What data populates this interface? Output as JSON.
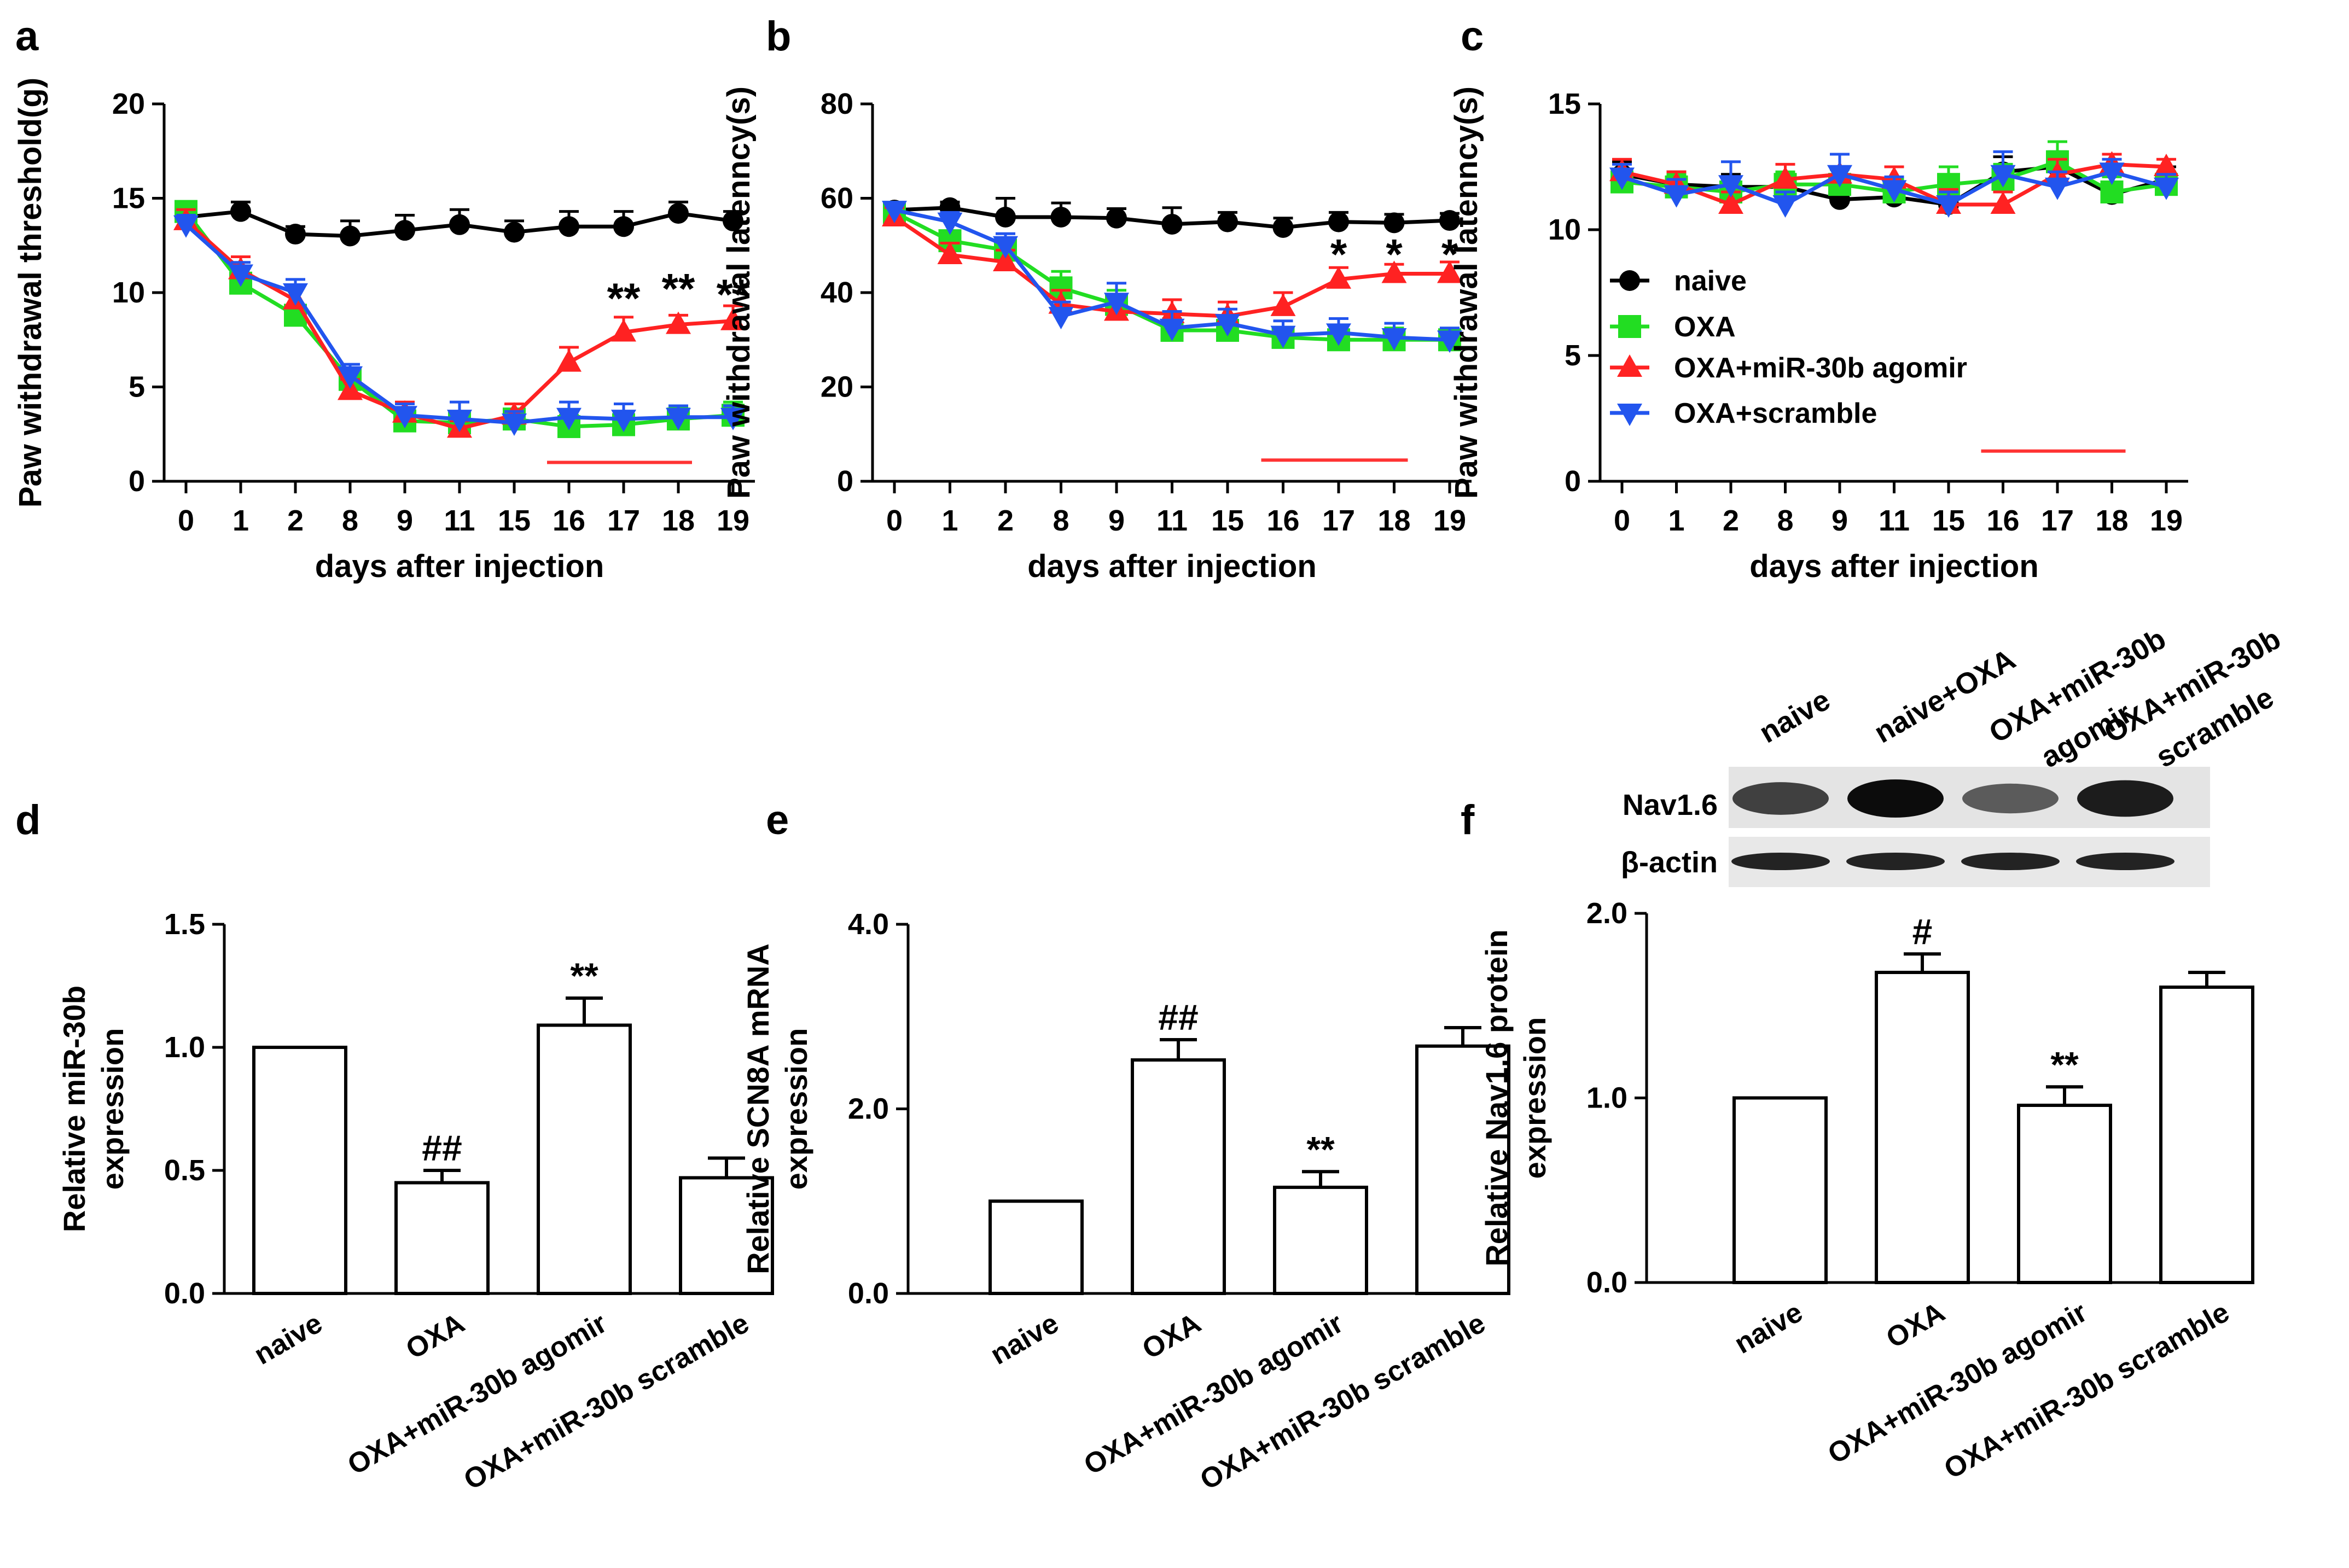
{
  "chart_data": [
    {
      "type": "line",
      "panel": "a",
      "ylabel": "Paw withdrawal threshold(g)",
      "xlabel": "days after injection",
      "categories": [
        "0",
        "1",
        "2",
        "8",
        "9",
        "11",
        "15",
        "16",
        "17",
        "18",
        "19"
      ],
      "ylim": [
        0,
        20
      ],
      "yticks": [
        0,
        5,
        10,
        15,
        20
      ],
      "series": [
        {
          "name": "naive",
          "color": "#000000",
          "marker": "circle",
          "values": [
            14.0,
            14.3,
            13.1,
            13.0,
            13.3,
            13.6,
            13.2,
            13.5,
            13.5,
            14.2,
            13.8
          ],
          "errors": [
            0.5,
            0.5,
            0.4,
            0.8,
            0.8,
            0.8,
            0.6,
            0.8,
            0.8,
            0.6,
            0.5
          ]
        },
        {
          "name": "OXA",
          "color": "#22dd22",
          "marker": "square",
          "values": [
            14.3,
            10.5,
            8.8,
            5.4,
            3.2,
            3.1,
            3.3,
            2.9,
            3.0,
            3.3,
            3.5
          ],
          "errors": [
            0.4,
            0.5,
            0.5,
            0.5,
            0.5,
            0.5,
            0.5,
            0.6,
            0.6,
            0.6,
            0.7
          ]
        },
        {
          "name": "OXA+miR-30b agomir",
          "color": "#ff2222",
          "marker": "triangle-up",
          "values": [
            13.8,
            11.2,
            9.6,
            4.8,
            3.6,
            2.8,
            3.5,
            6.3,
            7.9,
            8.3,
            8.5
          ],
          "errors": [
            0.6,
            0.7,
            0.7,
            0.6,
            0.6,
            0.4,
            0.6,
            0.8,
            0.8,
            0.5,
            0.8
          ]
        },
        {
          "name": "OXA+scramble",
          "color": "#2255ee",
          "marker": "triangle-down",
          "values": [
            13.6,
            11.0,
            10.0,
            5.6,
            3.5,
            3.3,
            3.1,
            3.4,
            3.3,
            3.4,
            3.4
          ],
          "errors": [
            0.5,
            0.6,
            0.7,
            0.6,
            0.6,
            0.9,
            0.6,
            0.8,
            0.8,
            0.6,
            0.6
          ]
        }
      ],
      "annotations": [
        {
          "category": "17",
          "y": 9.8,
          "text": "**"
        },
        {
          "category": "18",
          "y": 10.3,
          "text": "**"
        },
        {
          "category": "19",
          "y": 10.0,
          "text": "**"
        }
      ],
      "bar_range": {
        "from": "16",
        "to": "18",
        "y": 1.0,
        "color": "#ff3333"
      }
    },
    {
      "type": "line",
      "panel": "b",
      "ylabel": "Paw withdrawal latenncy(s)",
      "xlabel": "days after injection",
      "categories": [
        "0",
        "1",
        "2",
        "8",
        "9",
        "11",
        "15",
        "16",
        "17",
        "18",
        "19"
      ],
      "ylim": [
        0,
        80
      ],
      "yticks": [
        0,
        20,
        40,
        60,
        80
      ],
      "series": [
        {
          "name": "naive",
          "color": "#000000",
          "marker": "circle",
          "values": [
            57.5,
            58.0,
            56.0,
            56.0,
            55.8,
            54.5,
            55.0,
            53.8,
            55.0,
            54.8,
            55.3
          ],
          "errors": [
            1.2,
            1.2,
            4.0,
            3.0,
            2.0,
            3.5,
            2.0,
            2.0,
            2.0,
            1.8,
            1.5
          ]
        },
        {
          "name": "OXA",
          "color": "#22dd22",
          "marker": "square",
          "values": [
            57.0,
            51.0,
            49.0,
            41.0,
            37.5,
            32.0,
            32.0,
            30.5,
            30.0,
            30.0,
            30.0
          ],
          "errors": [
            1.5,
            2.0,
            2.0,
            3.5,
            3.0,
            2.5,
            2.0,
            2.0,
            2.0,
            2.5,
            2.0
          ]
        },
        {
          "name": "OXA+miR-30b agomir",
          "color": "#ff2222",
          "marker": "triangle-up",
          "values": [
            56.0,
            48.0,
            46.5,
            37.5,
            36.0,
            35.5,
            35.0,
            37.0,
            42.8,
            44.0,
            44.0
          ],
          "errors": [
            2.0,
            2.5,
            2.5,
            3.0,
            3.0,
            3.0,
            3.0,
            3.0,
            2.5,
            2.0,
            2.5
          ]
        },
        {
          "name": "OXA+scramble",
          "color": "#2255ee",
          "marker": "triangle-down",
          "values": [
            57.5,
            55.0,
            50.0,
            35.0,
            38.0,
            32.5,
            33.5,
            31.0,
            31.5,
            30.5,
            30.0
          ],
          "errors": [
            1.5,
            2.0,
            2.5,
            3.0,
            4.0,
            3.5,
            3.0,
            3.0,
            3.0,
            3.0,
            2.5
          ]
        }
      ],
      "annotations": [
        {
          "category": "17",
          "y": 48.5,
          "text": "*"
        },
        {
          "category": "18",
          "y": 48.5,
          "text": "*"
        },
        {
          "category": "19",
          "y": 48.5,
          "text": "*"
        }
      ],
      "bar_range": {
        "from": "16",
        "to": "18",
        "y": 4.5,
        "color": "#ff3333"
      }
    },
    {
      "type": "line",
      "panel": "c",
      "ylabel": "Paw withdrawal latenncy(s)",
      "xlabel": "days after injection",
      "categories": [
        "0",
        "1",
        "2",
        "8",
        "9",
        "11",
        "15",
        "16",
        "17",
        "18",
        "19"
      ],
      "ylim": [
        0,
        15
      ],
      "yticks": [
        0,
        5,
        10,
        15
      ],
      "legend": "center-left",
      "series": [
        {
          "name": "naive",
          "color": "#000000",
          "marker": "circle",
          "values": [
            12.2,
            11.8,
            11.7,
            11.7,
            11.2,
            11.3,
            11.0,
            12.3,
            12.5,
            11.4,
            12.0
          ],
          "errors": [
            0.5,
            0.5,
            0.5,
            0.5,
            0.6,
            0.5,
            0.5,
            0.6,
            0.6,
            0.5,
            0.5
          ]
        },
        {
          "name": "OXA",
          "color": "#22dd22",
          "marker": "square",
          "values": [
            11.9,
            11.7,
            11.5,
            11.8,
            11.8,
            11.5,
            11.8,
            12.0,
            12.7,
            11.5,
            11.8
          ],
          "errors": [
            0.5,
            0.5,
            0.5,
            0.5,
            0.6,
            0.5,
            0.7,
            0.6,
            0.8,
            0.6,
            0.5
          ]
        },
        {
          "name": "OXA+miR-30b agomir",
          "color": "#ff2222",
          "marker": "triangle-up",
          "values": [
            12.3,
            11.8,
            11.0,
            12.0,
            12.2,
            12.0,
            11.0,
            11.0,
            12.2,
            12.6,
            12.5
          ],
          "errors": [
            0.5,
            0.5,
            0.5,
            0.6,
            0.8,
            0.5,
            0.6,
            0.5,
            0.6,
            0.4,
            0.3
          ]
        },
        {
          "name": "OXA+scramble",
          "color": "#2255ee",
          "marker": "triangle-down",
          "values": [
            12.1,
            11.4,
            11.8,
            11.0,
            12.2,
            11.6,
            11.0,
            12.2,
            11.7,
            12.3,
            11.7
          ],
          "errors": [
            0.5,
            0.6,
            0.9,
            0.5,
            0.8,
            0.5,
            0.5,
            0.9,
            0.6,
            0.5,
            0.5
          ]
        }
      ],
      "bar_range": {
        "from": "16",
        "to": "18",
        "y": 1.2,
        "color": "#ff3333"
      }
    },
    {
      "type": "bar",
      "panel": "d",
      "ylabel": "Relative miR-30b expression",
      "ylabel_lines": [
        "Relative miR-30b",
        "expression"
      ],
      "categories": [
        "naive",
        "OXA",
        "OXA+miR-30b agomir",
        "OXA+miR-30b scramble"
      ],
      "values": [
        1.0,
        0.45,
        1.09,
        0.47
      ],
      "errors": [
        0,
        0.05,
        0.11,
        0.08
      ],
      "ylim": [
        0,
        1.5
      ],
      "yticks": [
        "0.0",
        "0.5",
        "1.0",
        "1.5"
      ],
      "annotations": [
        "",
        "##",
        "**",
        ""
      ]
    },
    {
      "type": "bar",
      "panel": "e",
      "ylabel": "Relative SCN8A mRNA expression",
      "ylabel_lines": [
        "Relative SCN8A mRNA",
        "expression"
      ],
      "categories": [
        "naive",
        "OXA",
        "OXA+miR-30b agomir",
        "OXA+miR-30b scramble"
      ],
      "values": [
        1.0,
        2.53,
        1.15,
        2.68
      ],
      "errors": [
        0,
        0.22,
        0.17,
        0.2
      ],
      "ylim": [
        0,
        4.0
      ],
      "yticks": [
        "0.0",
        "2.0",
        "4.0"
      ],
      "annotations": [
        "",
        "##",
        "**",
        ""
      ]
    },
    {
      "type": "bar",
      "panel": "f",
      "ylabel": "Relative Nav1.6 protein expression",
      "ylabel_lines": [
        "Relative Nav1.6 protein",
        "expression"
      ],
      "categories": [
        "naive",
        "OXA",
        "OXA+miR-30b agomir",
        "OXA+miR-30b scramble"
      ],
      "values": [
        1.0,
        1.68,
        0.96,
        1.6
      ],
      "errors": [
        0,
        0.1,
        0.1,
        0.08
      ],
      "ylim": [
        0,
        2.0
      ],
      "yticks": [
        "0.0",
        "1.0",
        "2.0"
      ],
      "annotations": [
        "",
        "#",
        "**",
        ""
      ]
    }
  ],
  "blot": {
    "lanes": [
      "naive",
      "naive+OXA",
      "OXA+miR-30b agomir",
      "OXA+miR-30b scramble"
    ],
    "lane_lines": [
      [
        "naive"
      ],
      [
        "naive+OXA"
      ],
      [
        "OXA+miR-30b",
        "agomir"
      ],
      [
        "OXA+miR-30b",
        "scramble"
      ]
    ],
    "rows": [
      "Nav1.6",
      "β-actin"
    ],
    "nav_intensity": [
      0.72,
      0.95,
      0.6,
      0.88
    ],
    "actin_intensity": [
      0.85,
      0.85,
      0.85,
      0.85
    ]
  },
  "legend_colors": {
    "naive": "#000000",
    "OXA": "#22dd22",
    "agomir": "#ff2222",
    "scramble": "#2255ee"
  }
}
